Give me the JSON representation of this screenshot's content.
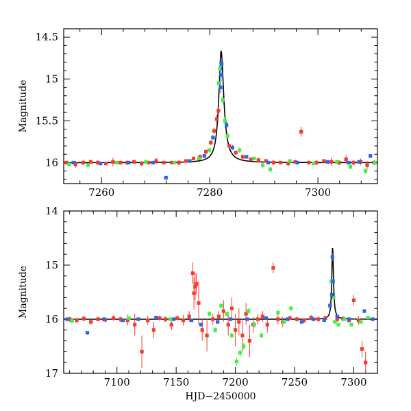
{
  "chart_data": [
    {
      "type": "scatter",
      "title": "",
      "xlabel": "",
      "ylabel": "Magnitude",
      "xlim": [
        7253,
        7311
      ],
      "ylim": [
        16.25,
        14.4
      ],
      "y_inverted": true,
      "xticks": [
        7260,
        7280,
        7300
      ],
      "xtick_labels": [
        "7260",
        "7280",
        "7300"
      ],
      "yticks": [
        14.5,
        15,
        15.5,
        16
      ],
      "ytick_labels": [
        "14.5",
        "15",
        "15.5",
        "16"
      ],
      "model_curve": {
        "baseline": 16.0,
        "peak_time": 7282.1,
        "peak_mag": 14.67,
        "rise_width": 0.52,
        "decay_width": 0.6
      },
      "series": [
        {
          "name": "red",
          "color": "#f43a2a",
          "x": [
            7253.5,
            7255.2,
            7256.6,
            7258.0,
            7259.3,
            7260.8,
            7262.1,
            7263.5,
            7264.7,
            7266.0,
            7267.4,
            7268.7,
            7270.1,
            7271.5,
            7273.0,
            7274.3,
            7275.6,
            7277.0,
            7278.2,
            7279.3,
            7280.2,
            7280.8,
            7281.3,
            7281.6,
            7283.6,
            7284.8,
            7286.1,
            7287.6,
            7289.0,
            7290.4,
            7291.8,
            7293.1,
            7294.5,
            7295.8,
            7296.9,
            7298.3,
            7299.7,
            7301.1,
            7302.5,
            7303.9,
            7305.2,
            7306.6,
            7307.9,
            7309.1,
            7310.4
          ],
          "y": [
            16.0,
            16.02,
            16.0,
            15.99,
            16.0,
            16.01,
            15.99,
            16.0,
            16.0,
            15.99,
            16.01,
            16.0,
            15.98,
            16.0,
            16.0,
            16.0,
            15.98,
            15.95,
            15.93,
            15.87,
            15.76,
            15.62,
            15.48,
            15.38,
            15.8,
            15.88,
            15.93,
            15.96,
            15.97,
            15.98,
            16.0,
            16.0,
            16.01,
            15.99,
            15.63,
            16.0,
            16.0,
            15.98,
            15.99,
            16.0,
            15.96,
            16.0,
            15.99,
            16.03,
            16.0
          ],
          "err": [
            0.02,
            0.04,
            0.03,
            0.02,
            0.03,
            0.02,
            0.05,
            0.02,
            0.03,
            0.02,
            0.03,
            0.02,
            0.04,
            0.02,
            0.02,
            0.03,
            0.02,
            0.02,
            0.03,
            0.03,
            0.03,
            0.04,
            0.05,
            0.05,
            0.03,
            0.03,
            0.03,
            0.02,
            0.03,
            0.02,
            0.03,
            0.02,
            0.03,
            0.02,
            0.06,
            0.02,
            0.03,
            0.02,
            0.05,
            0.03,
            0.05,
            0.03,
            0.04,
            0.05,
            0.03
          ]
        },
        {
          "name": "green",
          "color": "#44ee44",
          "x": [
            7254.0,
            7257.5,
            7262.8,
            7268.2,
            7273.5,
            7278.0,
            7279.9,
            7281.7,
            7281.9,
            7282.4,
            7282.8,
            7283.3,
            7285.5,
            7288.2,
            7289.8,
            7291.2,
            7294.8,
            7299.2,
            7303.5,
            7306.0,
            7308.8,
            7310.5
          ],
          "y": [
            16.02,
            16.03,
            16.0,
            15.99,
            16.0,
            15.95,
            15.85,
            15.05,
            14.88,
            15.25,
            15.5,
            15.68,
            15.85,
            15.95,
            16.03,
            16.08,
            15.98,
            16.01,
            15.99,
            16.05,
            16.1,
            16.0
          ],
          "err": [
            0.02,
            0.02,
            0.02,
            0.02,
            0.02,
            0.02,
            0.03,
            0.06,
            0.06,
            0.05,
            0.04,
            0.03,
            0.03,
            0.02,
            0.03,
            0.03,
            0.02,
            0.02,
            0.02,
            0.03,
            0.03,
            0.02
          ]
        },
        {
          "name": "blue",
          "color": "#2a64f0",
          "x": [
            7254.8,
            7259.8,
            7265.0,
            7269.5,
            7271.9,
            7276.3,
            7279.0,
            7280.6,
            7282.0,
            7282.1,
            7282.2,
            7283.1,
            7284.2,
            7286.8,
            7290.8,
            7296.2,
            7301.8,
            7305.7,
            7307.6,
            7309.7
          ],
          "y": [
            16.0,
            16.01,
            16.0,
            16.0,
            16.18,
            15.98,
            15.92,
            15.7,
            15.1,
            14.95,
            14.82,
            15.55,
            15.82,
            15.93,
            16.0,
            16.0,
            15.99,
            16.0,
            15.99,
            15.92
          ],
          "err": [
            0.02,
            0.02,
            0.02,
            0.02,
            0.02,
            0.02,
            0.02,
            0.03,
            0.07,
            0.08,
            0.07,
            0.04,
            0.03,
            0.02,
            0.02,
            0.02,
            0.02,
            0.02,
            0.02,
            0.02
          ]
        }
      ]
    },
    {
      "type": "scatter",
      "title": "",
      "xlabel": "HJD−2450000",
      "ylabel": "Magnitude",
      "xlim": [
        7055,
        7320
      ],
      "ylim": [
        17,
        14
      ],
      "y_inverted": true,
      "xticks": [
        7100,
        7150,
        7200,
        7250,
        7300
      ],
      "xtick_labels": [
        "7100",
        "7150",
        "7200",
        "7250",
        "7300"
      ],
      "yticks": [
        14,
        15,
        16,
        17
      ],
      "ytick_labels": [
        "14",
        "15",
        "16",
        "17"
      ],
      "model_curve": {
        "baseline": 16.0,
        "peak_time": 7282.1,
        "peak_mag": 14.67,
        "rise_width": 0.8,
        "decay_width": 0.9
      },
      "series": [
        {
          "name": "red",
          "color": "#f43a2a",
          "x": [
            7060,
            7066,
            7072,
            7078,
            7084,
            7090,
            7097,
            7103,
            7109,
            7115,
            7121,
            7126,
            7131,
            7136,
            7141,
            7146,
            7151,
            7156,
            7161,
            7164,
            7165,
            7166,
            7167,
            7169,
            7172,
            7176,
            7181,
            7186,
            7190,
            7194,
            7197,
            7200,
            7203,
            7206,
            7209,
            7212,
            7215,
            7219,
            7223,
            7227,
            7232,
            7236,
            7240,
            7246,
            7252,
            7258,
            7264,
            7270,
            7276,
            7280,
            7286,
            7291,
            7296,
            7300,
            7304,
            7307,
            7310
          ],
          "y": [
            16.0,
            16.02,
            15.99,
            16.05,
            16.0,
            16.01,
            15.98,
            16.0,
            16.02,
            16.1,
            16.6,
            16.02,
            16.2,
            15.98,
            16.0,
            16.1,
            15.98,
            16.02,
            15.95,
            15.15,
            15.52,
            15.4,
            15.35,
            15.7,
            16.2,
            16.3,
            16.0,
            15.95,
            15.85,
            16.1,
            15.8,
            16.2,
            16.05,
            16.3,
            15.9,
            16.4,
            16.1,
            16.0,
            15.95,
            16.1,
            15.05,
            16.0,
            16.05,
            15.98,
            16.0,
            16.02,
            15.97,
            16.0,
            15.98,
            15.75,
            16.0,
            15.99,
            16.02,
            15.65,
            16.02,
            16.55,
            16.8
          ],
          "err": [
            0.05,
            0.05,
            0.05,
            0.05,
            0.04,
            0.05,
            0.05,
            0.05,
            0.1,
            0.2,
            0.3,
            0.08,
            0.15,
            0.05,
            0.05,
            0.1,
            0.05,
            0.1,
            0.1,
            0.2,
            0.3,
            0.25,
            0.2,
            0.4,
            0.2,
            0.3,
            0.1,
            0.1,
            0.2,
            0.2,
            0.2,
            0.3,
            0.25,
            0.3,
            0.2,
            0.3,
            0.15,
            0.1,
            0.1,
            0.15,
            0.1,
            0.1,
            0.1,
            0.05,
            0.05,
            0.05,
            0.05,
            0.05,
            0.05,
            0.05,
            0.05,
            0.05,
            0.05,
            0.1,
            0.08,
            0.15,
            0.2
          ]
        },
        {
          "name": "green",
          "color": "#44ee44",
          "x": [
            7062,
            7110,
            7145,
            7178,
            7183,
            7188,
            7193,
            7197,
            7201,
            7204,
            7207,
            7211,
            7216,
            7222,
            7236,
            7241,
            7247,
            7256,
            7281,
            7283,
            7284,
            7287,
            7292,
            7298,
            7306,
            7312
          ],
          "y": [
            16.03,
            15.98,
            16.0,
            15.9,
            16.2,
            15.75,
            15.9,
            16.3,
            16.78,
            16.62,
            16.5,
            15.85,
            16.1,
            16.3,
            15.88,
            16.05,
            15.8,
            16.05,
            15.3,
            15.6,
            16.05,
            16.1,
            16.0,
            16.1,
            16.05,
            15.97
          ],
          "err": [
            0.03,
            0.03,
            0.03,
            0.05,
            0.05,
            0.05,
            0.05,
            0.05,
            0.08,
            0.08,
            0.06,
            0.05,
            0.05,
            0.05,
            0.04,
            0.04,
            0.04,
            0.03,
            0.05,
            0.04,
            0.03,
            0.03,
            0.03,
            0.03,
            0.03,
            0.03
          ]
        },
        {
          "name": "blue",
          "color": "#2a64f0",
          "x": [
            7058,
            7075,
            7089,
            7105,
            7118,
            7133,
            7148,
            7163,
            7171,
            7185,
            7196,
            7210,
            7226,
            7244,
            7256,
            7266,
            7275,
            7280,
            7281.5,
            7282,
            7282.5,
            7286,
            7296,
            7309,
            7316
          ],
          "y": [
            16.0,
            16.25,
            16.0,
            16.02,
            16.0,
            15.97,
            16.0,
            16.02,
            16.1,
            16.05,
            16.0,
            16.0,
            15.98,
            16.0,
            16.05,
            16.0,
            16.02,
            15.75,
            15.55,
            14.85,
            15.3,
            15.95,
            16.0,
            15.85,
            16.0
          ],
          "err": [
            0.03,
            0.03,
            0.03,
            0.03,
            0.03,
            0.03,
            0.03,
            0.03,
            0.03,
            0.03,
            0.03,
            0.03,
            0.03,
            0.03,
            0.03,
            0.03,
            0.03,
            0.04,
            0.05,
            0.08,
            0.05,
            0.03,
            0.03,
            0.03,
            0.03
          ]
        }
      ]
    }
  ]
}
